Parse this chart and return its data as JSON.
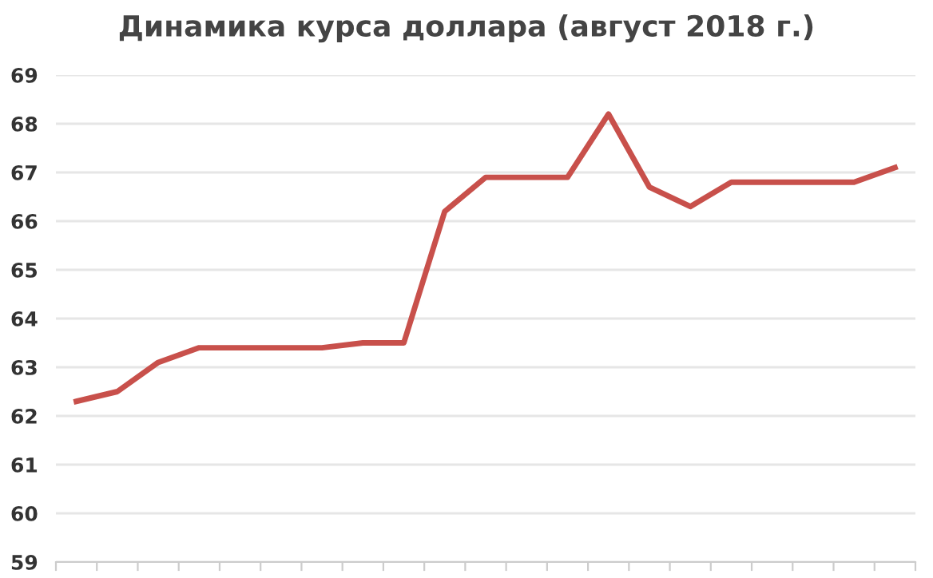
{
  "chart_data": {
    "type": "line",
    "title": "Динамика курса доллара (август 2018 г.)",
    "categories": [
      null,
      null,
      null,
      null,
      null,
      null,
      null,
      null,
      null,
      null,
      null,
      null,
      null,
      null,
      null,
      null,
      null,
      null,
      null,
      null,
      null
    ],
    "series": [
      {
        "color": "#c8504b",
        "values": [
          62.3,
          62.5,
          63.1,
          63.4,
          63.4,
          63.4,
          63.4,
          63.5,
          63.5,
          66.2,
          66.9,
          66.9,
          66.9,
          68.2,
          66.7,
          66.3,
          66.8,
          66.8,
          66.8,
          66.8,
          67.1
        ]
      }
    ],
    "ylim": [
      59,
      69
    ],
    "yticks": [
      59,
      60,
      61,
      62,
      63,
      64,
      65,
      66,
      67,
      68,
      69
    ],
    "grid": "y",
    "marker": "none",
    "line_style": "solid",
    "legend": false
  }
}
